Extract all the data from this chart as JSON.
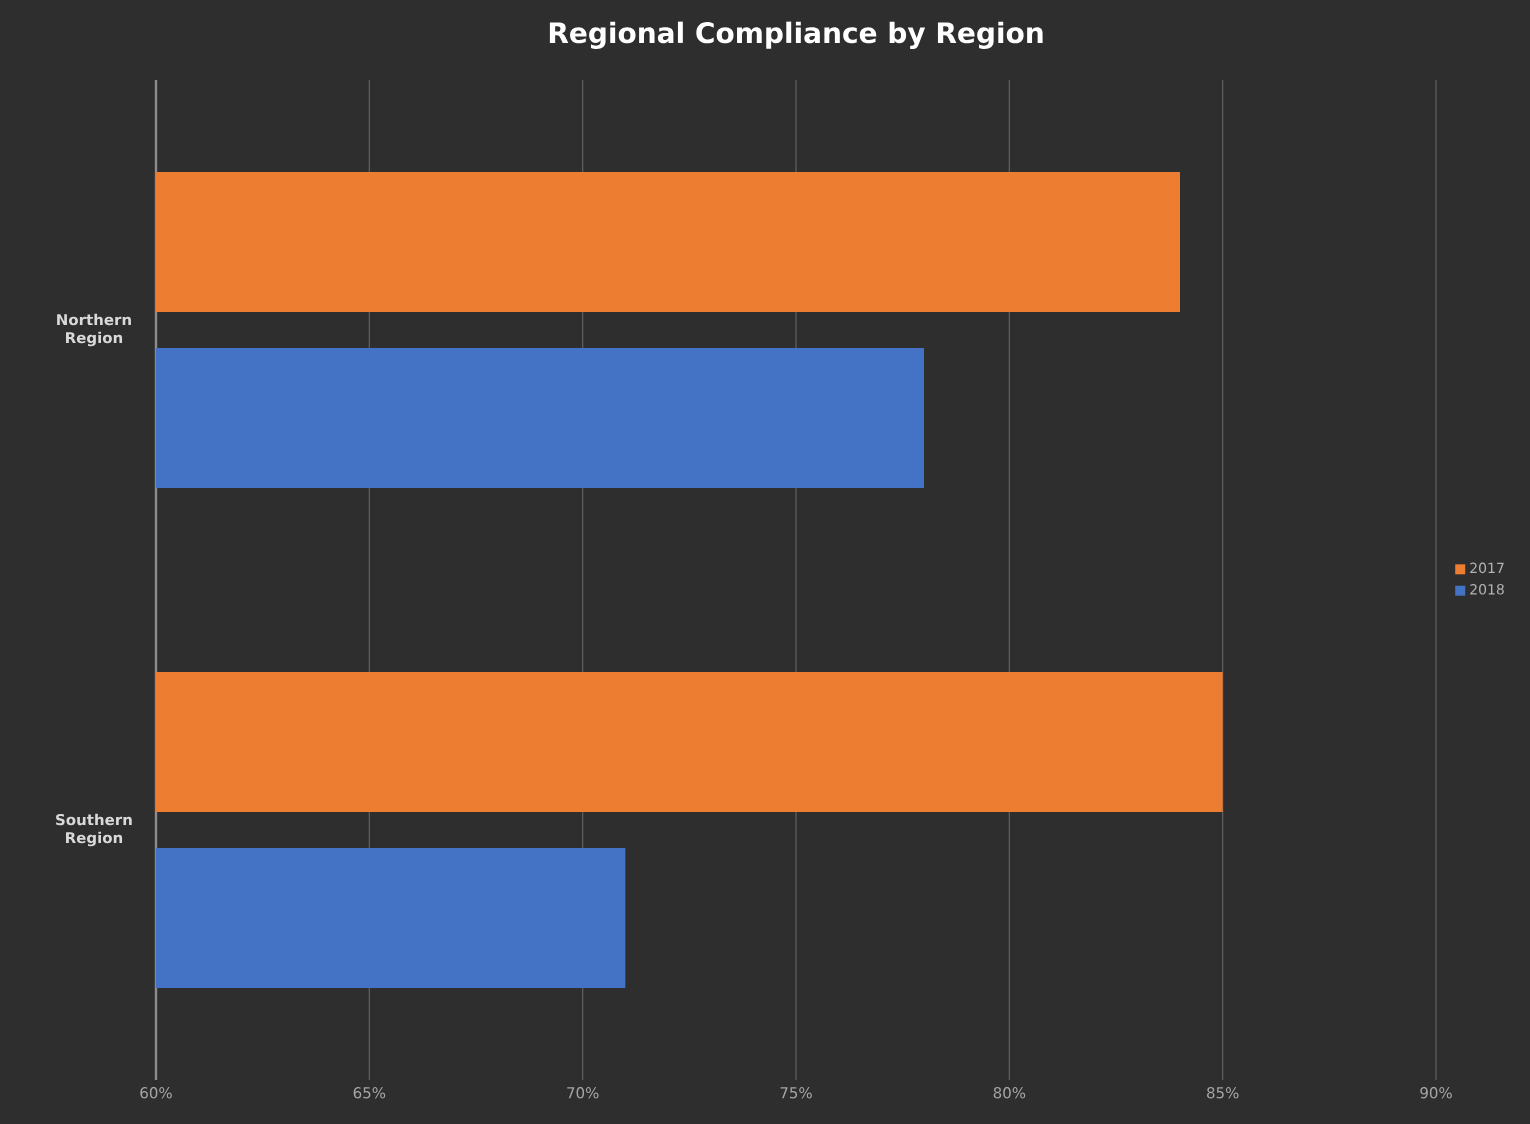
{
  "chart_data": {
    "type": "bar",
    "orientation": "horizontal",
    "title": "Regional Compliance by Region",
    "categories": [
      "Northern Region",
      "Southern Region"
    ],
    "series": [
      {
        "name": "2017",
        "color": "#ed7d31",
        "values": [
          84,
          85
        ]
      },
      {
        "name": "2018",
        "color": "#4472c4",
        "values": [
          78,
          71
        ]
      }
    ],
    "xlim": [
      60,
      90
    ],
    "xticks": [
      {
        "value": 60,
        "label": "60%"
      },
      {
        "value": 65,
        "label": "65%"
      },
      {
        "value": 70,
        "label": "70%"
      },
      {
        "value": 75,
        "label": "75%"
      },
      {
        "value": 80,
        "label": "80%"
      },
      {
        "value": 85,
        "label": "85%"
      },
      {
        "value": 90,
        "label": "90%"
      }
    ],
    "grid": "x",
    "legend": "right"
  }
}
